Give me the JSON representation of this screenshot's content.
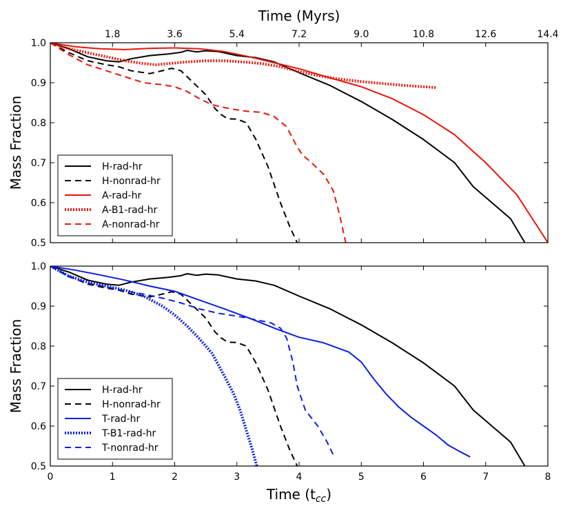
{
  "chart_data": [
    {
      "type": "line",
      "panel": "top",
      "ylabel": "Mass Fraction",
      "top_axis_label": "Time (Myrs)",
      "top_ticks": [
        "1.8",
        "3.6",
        "5.4",
        "7.2",
        "9.0",
        "10.8",
        "12.6",
        "14.4"
      ],
      "top_tick_positions": [
        1,
        2,
        3,
        4,
        5,
        6,
        7,
        8
      ],
      "xlim": [
        0,
        8
      ],
      "ylim": [
        0.5,
        1.0
      ],
      "yticks": [
        0.5,
        0.6,
        0.7,
        0.8,
        0.9,
        1.0
      ],
      "ytick_labels": [
        "0.5",
        "0.6",
        "0.7",
        "0.8",
        "0.9",
        "1.0"
      ],
      "legend_position": "bottom-left",
      "series": [
        {
          "name": "H-rad-hr",
          "color": "#000000",
          "style": "solid",
          "x": [
            0,
            0.3,
            0.6,
            0.9,
            1.1,
            1.3,
            1.6,
            1.9,
            2.1,
            2.2,
            2.35,
            2.5,
            2.7,
            3.0,
            3.3,
            3.6,
            4.0,
            4.5,
            5.0,
            5.5,
            6.0,
            6.5,
            6.8,
            7.1,
            7.4,
            7.63
          ],
          "y": [
            1.0,
            0.985,
            0.965,
            0.955,
            0.952,
            0.96,
            0.968,
            0.972,
            0.976,
            0.981,
            0.977,
            0.98,
            0.978,
            0.968,
            0.963,
            0.952,
            0.925,
            0.893,
            0.853,
            0.808,
            0.758,
            0.7,
            0.64,
            0.6,
            0.56,
            0.5
          ]
        },
        {
          "name": "H-nonrad-hr",
          "color": "#000000",
          "style": "dashed",
          "x": [
            0,
            0.3,
            0.6,
            0.9,
            1.1,
            1.3,
            1.6,
            1.8,
            1.95,
            2.1,
            2.3,
            2.5,
            2.65,
            2.75,
            2.85,
            3.0,
            3.15,
            3.3,
            3.5,
            3.7,
            3.85,
            3.97
          ],
          "y": [
            1.0,
            0.975,
            0.955,
            0.945,
            0.94,
            0.93,
            0.923,
            0.93,
            0.936,
            0.93,
            0.9,
            0.87,
            0.835,
            0.82,
            0.81,
            0.809,
            0.8,
            0.76,
            0.69,
            0.6,
            0.54,
            0.5
          ]
        },
        {
          "name": "A-rad-hr",
          "color": "#e8150b",
          "style": "solid",
          "x": [
            0,
            0.4,
            0.8,
            1.2,
            1.6,
            2.0,
            2.4,
            2.8,
            3.2,
            3.6,
            4.0,
            4.5,
            5.0,
            5.5,
            6.0,
            6.5,
            7.0,
            7.5,
            8.0
          ],
          "y": [
            1.0,
            0.99,
            0.985,
            0.983,
            0.986,
            0.987,
            0.985,
            0.978,
            0.965,
            0.95,
            0.935,
            0.912,
            0.89,
            0.86,
            0.82,
            0.77,
            0.7,
            0.62,
            0.5
          ]
        },
        {
          "name": "A-B1-rad-hr",
          "color": "#e8150b",
          "style": "dotted",
          "x": [
            0,
            0.3,
            0.6,
            0.9,
            1.2,
            1.5,
            1.7,
            1.9,
            2.2,
            2.5,
            2.8,
            3.1,
            3.4,
            3.7,
            4.0,
            4.3,
            4.6,
            5.0,
            5.4,
            5.8,
            6.2
          ],
          "y": [
            1.0,
            0.985,
            0.975,
            0.965,
            0.955,
            0.948,
            0.945,
            0.948,
            0.952,
            0.955,
            0.955,
            0.952,
            0.948,
            0.94,
            0.928,
            0.918,
            0.91,
            0.903,
            0.897,
            0.892,
            0.888
          ]
        },
        {
          "name": "A-nonrad-hr",
          "color": "#e8150b",
          "style": "dashed",
          "x": [
            0,
            0.3,
            0.6,
            0.9,
            1.2,
            1.5,
            1.8,
            2.0,
            2.2,
            2.4,
            2.6,
            2.8,
            3.0,
            3.2,
            3.4,
            3.6,
            3.8,
            3.95,
            4.05,
            4.2,
            4.4,
            4.55,
            4.65,
            4.75
          ],
          "y": [
            1.0,
            0.97,
            0.945,
            0.93,
            0.915,
            0.9,
            0.895,
            0.89,
            0.878,
            0.86,
            0.845,
            0.838,
            0.832,
            0.828,
            0.826,
            0.815,
            0.79,
            0.745,
            0.72,
            0.7,
            0.67,
            0.63,
            0.57,
            0.5
          ]
        }
      ]
    },
    {
      "type": "line",
      "panel": "bottom",
      "ylabel": "Mass Fraction",
      "xlabel": "Time (t",
      "xlabel_sub": "cc",
      "xlabel_close": ")",
      "xlim": [
        0,
        8
      ],
      "ylim": [
        0.5,
        1.0
      ],
      "xticks": [
        0,
        1,
        2,
        3,
        4,
        5,
        6,
        7,
        8
      ],
      "xtick_labels": [
        "0",
        "1",
        "2",
        "3",
        "4",
        "5",
        "6",
        "7",
        "8"
      ],
      "yticks": [
        0.5,
        0.6,
        0.7,
        0.8,
        0.9,
        1.0
      ],
      "ytick_labels": [
        "0.5",
        "0.6",
        "0.7",
        "0.8",
        "0.9",
        "1.0"
      ],
      "legend_position": "bottom-left",
      "series": [
        {
          "name": "H-rad-hr",
          "color": "#000000",
          "style": "solid",
          "x": [
            0,
            0.3,
            0.6,
            0.9,
            1.1,
            1.3,
            1.6,
            1.9,
            2.1,
            2.2,
            2.35,
            2.5,
            2.7,
            3.0,
            3.3,
            3.6,
            4.0,
            4.5,
            5.0,
            5.5,
            6.0,
            6.5,
            6.8,
            7.1,
            7.4,
            7.63
          ],
          "y": [
            1.0,
            0.985,
            0.965,
            0.955,
            0.952,
            0.96,
            0.968,
            0.972,
            0.976,
            0.981,
            0.977,
            0.98,
            0.978,
            0.968,
            0.963,
            0.952,
            0.925,
            0.893,
            0.853,
            0.808,
            0.758,
            0.7,
            0.64,
            0.6,
            0.56,
            0.5
          ]
        },
        {
          "name": "H-nonrad-hr",
          "color": "#000000",
          "style": "dashed",
          "x": [
            0,
            0.3,
            0.6,
            0.9,
            1.1,
            1.3,
            1.6,
            1.8,
            1.95,
            2.1,
            2.3,
            2.5,
            2.65,
            2.75,
            2.85,
            3.0,
            3.15,
            3.3,
            3.5,
            3.7,
            3.85,
            3.97
          ],
          "y": [
            1.0,
            0.975,
            0.955,
            0.945,
            0.94,
            0.93,
            0.923,
            0.93,
            0.936,
            0.93,
            0.9,
            0.87,
            0.835,
            0.82,
            0.81,
            0.809,
            0.8,
            0.76,
            0.69,
            0.6,
            0.54,
            0.5
          ]
        },
        {
          "name": "T-rad-hr",
          "color": "#0a1fe0",
          "style": "solid",
          "x": [
            0,
            0.4,
            0.8,
            1.2,
            1.6,
            2.0,
            2.4,
            2.8,
            3.2,
            3.6,
            4.0,
            4.4,
            4.8,
            5.0,
            5.2,
            5.4,
            5.6,
            5.8,
            6.0,
            6.2,
            6.4,
            6.6,
            6.75
          ],
          "y": [
            1.0,
            0.99,
            0.978,
            0.965,
            0.95,
            0.937,
            0.915,
            0.893,
            0.87,
            0.845,
            0.822,
            0.808,
            0.785,
            0.76,
            0.718,
            0.68,
            0.648,
            0.622,
            0.6,
            0.578,
            0.552,
            0.535,
            0.523
          ]
        },
        {
          "name": "T-B1-rad-hr",
          "color": "#0a1fe0",
          "style": "dotted",
          "x": [
            0,
            0.3,
            0.6,
            0.9,
            1.2,
            1.5,
            1.8,
            2.0,
            2.2,
            2.4,
            2.6,
            2.8,
            2.95,
            3.05,
            3.15,
            3.25,
            3.32
          ],
          "y": [
            1.0,
            0.975,
            0.96,
            0.95,
            0.94,
            0.925,
            0.9,
            0.878,
            0.85,
            0.818,
            0.782,
            0.725,
            0.68,
            0.64,
            0.59,
            0.54,
            0.5
          ]
        },
        {
          "name": "T-nonrad-hr",
          "color": "#0a1fe0",
          "style": "dashed",
          "x": [
            0,
            0.3,
            0.6,
            0.9,
            1.2,
            1.5,
            1.8,
            2.1,
            2.4,
            2.7,
            3.0,
            3.3,
            3.55,
            3.7,
            3.8,
            3.9,
            3.97,
            4.1,
            4.3,
            4.45,
            4.55
          ],
          "y": [
            1.0,
            0.973,
            0.958,
            0.948,
            0.938,
            0.93,
            0.92,
            0.908,
            0.893,
            0.882,
            0.875,
            0.866,
            0.858,
            0.845,
            0.82,
            0.76,
            0.7,
            0.64,
            0.6,
            0.56,
            0.528
          ]
        }
      ]
    }
  ]
}
